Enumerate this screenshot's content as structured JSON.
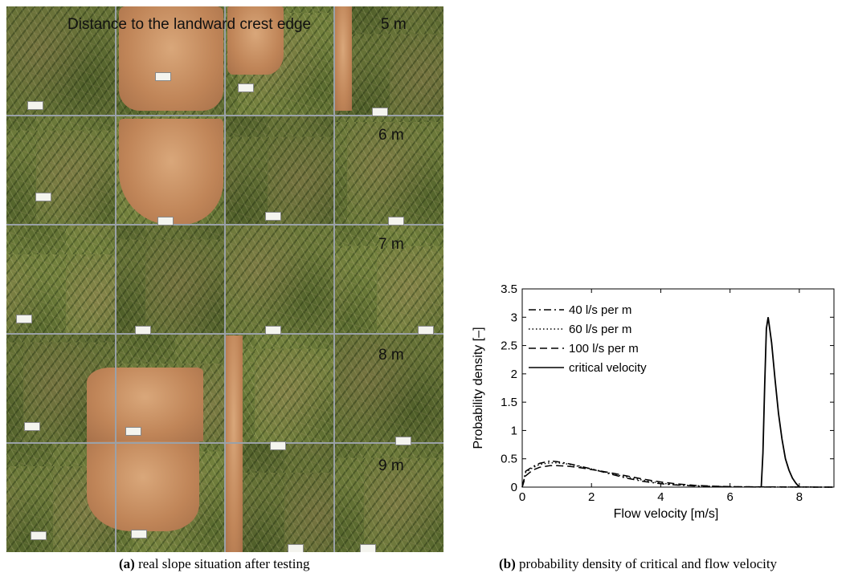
{
  "figure": {
    "panel_a": {
      "caption_tag": "(a)",
      "caption_text": "real slope situation after testing",
      "title": "Distance to the landward crest edge",
      "distances": [
        "5 m",
        "6 m",
        "7 m",
        "8 m",
        "9 m"
      ]
    },
    "panel_b": {
      "caption_tag": "(b)",
      "caption_text": "probability density of critical and flow velocity"
    }
  },
  "chart_data": {
    "type": "line",
    "xlabel": "Flow velocity [m/s]",
    "ylabel": "Probability density [–]",
    "xlim": [
      0,
      9
    ],
    "ylim": [
      0,
      3.5
    ],
    "xticks": [
      0,
      2,
      4,
      6,
      8
    ],
    "yticks": [
      0,
      0.5,
      1,
      1.5,
      2,
      2.5,
      3,
      3.5
    ],
    "grid": false,
    "legend_position": "top-left",
    "series": [
      {
        "name": "40 l/s per m",
        "style": "dash-dot",
        "x": [
          0,
          0.1,
          0.3,
          0.5,
          0.8,
          1.0,
          1.3,
          1.6,
          2.0,
          2.5,
          3.0,
          3.5,
          4.0,
          4.5,
          5.0,
          5.5,
          6.0,
          7.0,
          8.0,
          9.0
        ],
        "y": [
          0,
          0.28,
          0.36,
          0.42,
          0.46,
          0.45,
          0.42,
          0.38,
          0.32,
          0.24,
          0.16,
          0.1,
          0.06,
          0.035,
          0.02,
          0.01,
          0.005,
          0.002,
          0.001,
          0
        ]
      },
      {
        "name": "60 l/s per m",
        "style": "dotted",
        "x": [
          0,
          0.1,
          0.3,
          0.5,
          0.8,
          1.0,
          1.3,
          1.6,
          2.0,
          2.5,
          3.0,
          3.5,
          4.0,
          4.5,
          5.0,
          5.5,
          6.0,
          7.0,
          8.0,
          9.0
        ],
        "y": [
          0,
          0.26,
          0.34,
          0.4,
          0.43,
          0.43,
          0.41,
          0.37,
          0.32,
          0.25,
          0.18,
          0.12,
          0.07,
          0.04,
          0.025,
          0.013,
          0.007,
          0.003,
          0.001,
          0
        ]
      },
      {
        "name": "100 l/s per m",
        "style": "dashed",
        "x": [
          0,
          0.1,
          0.3,
          0.5,
          0.8,
          1.0,
          1.3,
          1.6,
          2.0,
          2.5,
          3.0,
          3.5,
          4.0,
          4.5,
          5.0,
          5.5,
          6.0,
          7.0,
          8.0,
          9.0
        ],
        "y": [
          0,
          0.2,
          0.3,
          0.35,
          0.38,
          0.38,
          0.37,
          0.35,
          0.31,
          0.26,
          0.2,
          0.14,
          0.09,
          0.055,
          0.03,
          0.017,
          0.009,
          0.004,
          0.002,
          0
        ]
      },
      {
        "name": "critical velocity",
        "style": "solid",
        "x": [
          6.9,
          6.95,
          7.0,
          7.05,
          7.1,
          7.2,
          7.3,
          7.4,
          7.5,
          7.6,
          7.7,
          7.8,
          7.9,
          8.0
        ],
        "y": [
          0,
          0.6,
          1.8,
          2.8,
          3.0,
          2.55,
          1.9,
          1.3,
          0.85,
          0.5,
          0.3,
          0.16,
          0.07,
          0
        ]
      }
    ]
  }
}
